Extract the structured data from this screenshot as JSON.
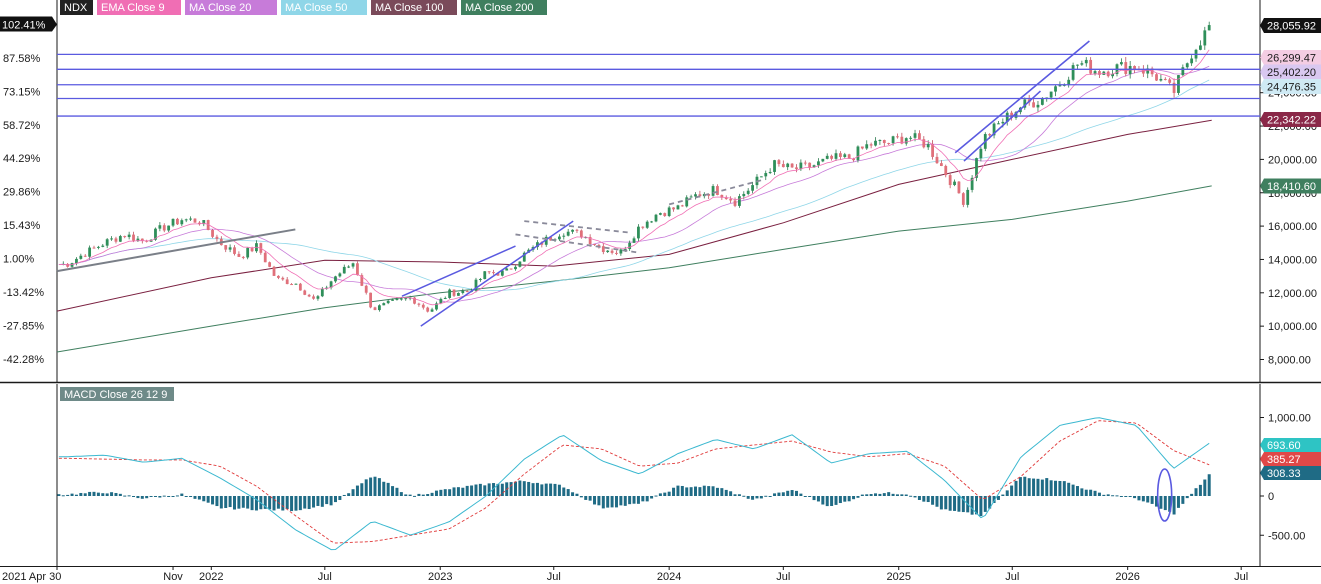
{
  "chart_data": {
    "type": "candlestick",
    "symbol": "NDX",
    "overlays": [
      {
        "name": "EMA Close 9",
        "color": "#f06eb4"
      },
      {
        "name": "MA Close 20",
        "color": "#c77bd9"
      },
      {
        "name": "MA Close 50",
        "color": "#8fd6e8"
      },
      {
        "name": "MA Close 100",
        "color": "#7a2040"
      },
      {
        "name": "MA Close 200",
        "color": "#3f7f5f"
      }
    ],
    "x_ticks": [
      "2021 Apr 30",
      "Nov",
      "2022",
      "Jul",
      "2023",
      "Jul",
      "2024",
      "Jul",
      "2025",
      "Jul",
      "2026",
      "Jul"
    ],
    "x_range": [
      "2021-04-30",
      "2026-07-31"
    ],
    "price_axis_ticks": [
      8000,
      10000,
      12000,
      14000,
      16000,
      18000,
      20000,
      22000,
      24000
    ],
    "price_axis_tick_labels": [
      "8,000.00",
      "10,000.00",
      "12,000.00",
      "14,000.00",
      "16,000.00",
      "18,000.00",
      "20,000.00",
      "22,000.00",
      "24,000.00"
    ],
    "percent_axis_ticks": [
      "102.41%",
      "87.58%",
      "73.15%",
      "58.72%",
      "44.29%",
      "29.86%",
      "15.43%",
      "1.00%",
      "-13.42%",
      "-27.85%",
      "-42.28%"
    ],
    "last_price": "28,055.92",
    "horizontal_levels": [
      {
        "label": "26,299.47",
        "value": 26299.47
      },
      {
        "label": "25,402.20",
        "value": 25402.2
      },
      {
        "label": "24,476.35",
        "value": 24476.35
      },
      {
        "label": "",
        "value": 23650
      },
      {
        "label": "",
        "value": 22600
      }
    ],
    "ma_last_values": [
      {
        "name": "MA Close 100",
        "label": "22,342.22",
        "value": 22342.22
      },
      {
        "name": "MA Close 200",
        "label": "18,410.60",
        "value": 18410.6
      }
    ],
    "close_series": [
      {
        "date": "2021-05",
        "close": 13700
      },
      {
        "date": "2021-06",
        "close": 14400
      },
      {
        "date": "2021-07",
        "close": 15000
      },
      {
        "date": "2021-08",
        "close": 15500
      },
      {
        "date": "2021-09",
        "close": 15100
      },
      {
        "date": "2021-10",
        "close": 15900
      },
      {
        "date": "2021-11",
        "close": 16400
      },
      {
        "date": "2021-12",
        "close": 16300
      },
      {
        "date": "2022-01",
        "close": 15000
      },
      {
        "date": "2022-02",
        "close": 14200
      },
      {
        "date": "2022-03",
        "close": 14800
      },
      {
        "date": "2022-04",
        "close": 12800
      },
      {
        "date": "2022-05",
        "close": 12600
      },
      {
        "date": "2022-06",
        "close": 11500
      },
      {
        "date": "2022-07",
        "close": 12900
      },
      {
        "date": "2022-08",
        "close": 13800
      },
      {
        "date": "2022-09",
        "close": 11000
      },
      {
        "date": "2022-10",
        "close": 11400
      },
      {
        "date": "2022-11",
        "close": 11700
      },
      {
        "date": "2022-12",
        "close": 10900
      },
      {
        "date": "2023-01",
        "close": 12000
      },
      {
        "date": "2023-02",
        "close": 12100
      },
      {
        "date": "2023-03",
        "close": 13200
      },
      {
        "date": "2023-04",
        "close": 13200
      },
      {
        "date": "2023-05",
        "close": 14300
      },
      {
        "date": "2023-06",
        "close": 15100
      },
      {
        "date": "2023-07",
        "close": 15700
      },
      {
        "date": "2023-08",
        "close": 15500
      },
      {
        "date": "2023-09",
        "close": 14700
      },
      {
        "date": "2023-10",
        "close": 14400
      },
      {
        "date": "2023-11",
        "close": 16000
      },
      {
        "date": "2023-12",
        "close": 16800
      },
      {
        "date": "2024-01",
        "close": 17100
      },
      {
        "date": "2024-02",
        "close": 17900
      },
      {
        "date": "2024-03",
        "close": 18200
      },
      {
        "date": "2024-04",
        "close": 17500
      },
      {
        "date": "2024-05",
        "close": 18500
      },
      {
        "date": "2024-06",
        "close": 19700
      },
      {
        "date": "2024-07",
        "close": 19400
      },
      {
        "date": "2024-08",
        "close": 19600
      },
      {
        "date": "2024-09",
        "close": 20000
      },
      {
        "date": "2024-10",
        "close": 20100
      },
      {
        "date": "2024-11",
        "close": 20900
      },
      {
        "date": "2024-12",
        "close": 21000
      },
      {
        "date": "2025-01",
        "close": 21400
      },
      {
        "date": "2025-02",
        "close": 20900
      },
      {
        "date": "2025-03",
        "close": 19300
      },
      {
        "date": "2025-04",
        "close": 17500
      },
      {
        "date": "2025-05",
        "close": 21200
      },
      {
        "date": "2025-06",
        "close": 22300
      },
      {
        "date": "2025-07",
        "close": 23200
      },
      {
        "date": "2025-08",
        "close": 23600
      },
      {
        "date": "2025-09",
        "close": 24600
      },
      {
        "date": "2025-10",
        "close": 25800
      },
      {
        "date": "2025-11",
        "close": 25300
      },
      {
        "date": "2025-12",
        "close": 25500
      },
      {
        "date": "2026-01",
        "close": 25600
      },
      {
        "date": "2026-02",
        "close": 25000
      },
      {
        "date": "2026-03",
        "close": 24000
      },
      {
        "date": "2026-04",
        "close": 26600
      },
      {
        "date": "2026-05",
        "close": 28055.92
      }
    ],
    "macd": {
      "title": "MACD Close 26 12 9",
      "ticks": [
        1000,
        0,
        -500
      ],
      "tick_labels": [
        "1,000.00",
        "0",
        "-500.00"
      ],
      "macd_color": "#3bb8d0",
      "signal_color": "#e03a3a",
      "hist_color": "#1f6b85",
      "last_values": [
        {
          "label": "693.60",
          "value": 693.6,
          "color": "#2ec4c4"
        },
        {
          "label": "385.27",
          "value": 385.27,
          "color": "#e04848"
        },
        {
          "label": "308.33",
          "value": 308.33,
          "color": "#1f6b85"
        }
      ],
      "macd_series": [
        {
          "date": "2021-05",
          "value": 500
        },
        {
          "date": "2021-07",
          "value": 520
        },
        {
          "date": "2021-09",
          "value": 430
        },
        {
          "date": "2021-11",
          "value": 480
        },
        {
          "date": "2022-01",
          "value": 230
        },
        {
          "date": "2022-03",
          "value": -50
        },
        {
          "date": "2022-05",
          "value": -430
        },
        {
          "date": "2022-07",
          "value": -700
        },
        {
          "date": "2022-09",
          "value": -320
        },
        {
          "date": "2022-11",
          "value": -500
        },
        {
          "date": "2023-01",
          "value": -330
        },
        {
          "date": "2023-03",
          "value": 0
        },
        {
          "date": "2023-05",
          "value": 470
        },
        {
          "date": "2023-07",
          "value": 780
        },
        {
          "date": "2023-09",
          "value": 450
        },
        {
          "date": "2023-11",
          "value": 280
        },
        {
          "date": "2024-01",
          "value": 540
        },
        {
          "date": "2024-03",
          "value": 720
        },
        {
          "date": "2024-05",
          "value": 600
        },
        {
          "date": "2024-07",
          "value": 780
        },
        {
          "date": "2024-09",
          "value": 420
        },
        {
          "date": "2024-11",
          "value": 540
        },
        {
          "date": "2025-01",
          "value": 570
        },
        {
          "date": "2025-03",
          "value": 200
        },
        {
          "date": "2025-05",
          "value": -300
        },
        {
          "date": "2025-07",
          "value": 500
        },
        {
          "date": "2025-09",
          "value": 900
        },
        {
          "date": "2025-11",
          "value": 1000
        },
        {
          "date": "2026-01",
          "value": 900
        },
        {
          "date": "2026-03",
          "value": 350
        },
        {
          "date": "2026-05",
          "value": 693.6
        }
      ],
      "signal_series": [
        {
          "date": "2021-05",
          "value": 480
        },
        {
          "date": "2021-07",
          "value": 470
        },
        {
          "date": "2021-09",
          "value": 460
        },
        {
          "date": "2021-11",
          "value": 460
        },
        {
          "date": "2022-01",
          "value": 380
        },
        {
          "date": "2022-03",
          "value": 120
        },
        {
          "date": "2022-05",
          "value": -250
        },
        {
          "date": "2022-07",
          "value": -600
        },
        {
          "date": "2022-09",
          "value": -580
        },
        {
          "date": "2022-11",
          "value": -500
        },
        {
          "date": "2023-01",
          "value": -420
        },
        {
          "date": "2023-03",
          "value": -150
        },
        {
          "date": "2023-05",
          "value": 280
        },
        {
          "date": "2023-07",
          "value": 650
        },
        {
          "date": "2023-09",
          "value": 600
        },
        {
          "date": "2023-11",
          "value": 380
        },
        {
          "date": "2024-01",
          "value": 420
        },
        {
          "date": "2024-03",
          "value": 600
        },
        {
          "date": "2024-05",
          "value": 650
        },
        {
          "date": "2024-07",
          "value": 700
        },
        {
          "date": "2024-09",
          "value": 560
        },
        {
          "date": "2024-11",
          "value": 500
        },
        {
          "date": "2025-01",
          "value": 540
        },
        {
          "date": "2025-03",
          "value": 380
        },
        {
          "date": "2025-05",
          "value": -50
        },
        {
          "date": "2025-07",
          "value": 250
        },
        {
          "date": "2025-09",
          "value": 700
        },
        {
          "date": "2025-11",
          "value": 960
        },
        {
          "date": "2026-01",
          "value": 930
        },
        {
          "date": "2026-03",
          "value": 580
        },
        {
          "date": "2026-05",
          "value": 385.27
        }
      ],
      "hist_series": [
        {
          "date": "2021-05",
          "value": 20
        },
        {
          "date": "2021-07",
          "value": 50
        },
        {
          "date": "2021-09",
          "value": -30
        },
        {
          "date": "2021-11",
          "value": 20
        },
        {
          "date": "2022-01",
          "value": -150
        },
        {
          "date": "2022-03",
          "value": -170
        },
        {
          "date": "2022-05",
          "value": -180
        },
        {
          "date": "2022-07",
          "value": -100
        },
        {
          "date": "2022-09",
          "value": 260
        },
        {
          "date": "2022-11",
          "value": 0
        },
        {
          "date": "2023-01",
          "value": 90
        },
        {
          "date": "2023-03",
          "value": 150
        },
        {
          "date": "2023-05",
          "value": 190
        },
        {
          "date": "2023-07",
          "value": 130
        },
        {
          "date": "2023-09",
          "value": -150
        },
        {
          "date": "2023-11",
          "value": -100
        },
        {
          "date": "2024-01",
          "value": 120
        },
        {
          "date": "2024-03",
          "value": 120
        },
        {
          "date": "2024-05",
          "value": -50
        },
        {
          "date": "2024-07",
          "value": 80
        },
        {
          "date": "2024-09",
          "value": -140
        },
        {
          "date": "2024-11",
          "value": 40
        },
        {
          "date": "2025-01",
          "value": 30
        },
        {
          "date": "2025-03",
          "value": -180
        },
        {
          "date": "2025-05",
          "value": -250
        },
        {
          "date": "2025-07",
          "value": 250
        },
        {
          "date": "2025-09",
          "value": 200
        },
        {
          "date": "2025-11",
          "value": 40
        },
        {
          "date": "2026-01",
          "value": -30
        },
        {
          "date": "2026-03",
          "value": -230
        },
        {
          "date": "2026-05",
          "value": 308.33
        }
      ]
    },
    "grid": false
  }
}
